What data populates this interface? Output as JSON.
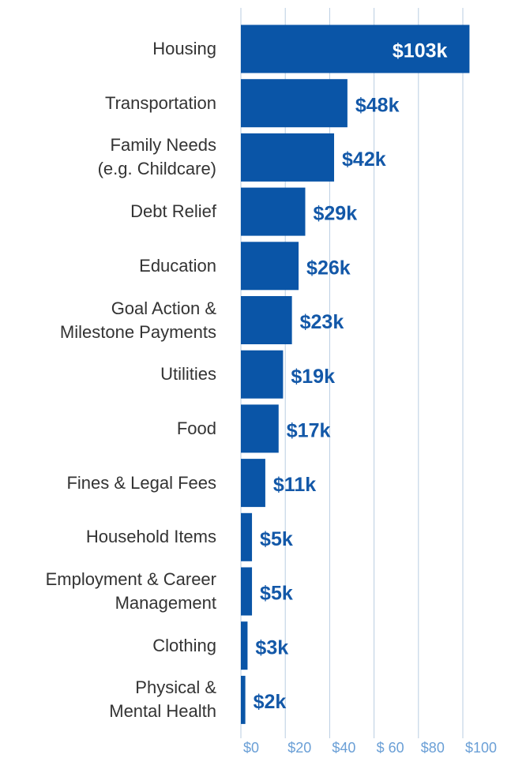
{
  "chart_data": {
    "type": "hbar",
    "categories": [
      "Housing",
      "Transportation",
      "Family Needs\n(e.g. Childcare)",
      "Debt Relief",
      "Education",
      "Goal Action &\nMilestone Payments",
      "Utilities",
      "Food",
      "Fines & Legal Fees",
      "Household Items",
      "Employment & Career\nManagement",
      "Clothing",
      "Physical &\nMental Health"
    ],
    "values": [
      103,
      48,
      42,
      29,
      26,
      23,
      19,
      17,
      11,
      5,
      5,
      3,
      2
    ],
    "value_labels": [
      "$103k",
      "$48k",
      "$42k",
      "$29k",
      "$26k",
      "$23k",
      "$19k",
      "$17k",
      "$11k",
      "$5k",
      "$5k",
      "$3k",
      "$2k"
    ],
    "color": "#0a55a7",
    "xlim": [
      0,
      120
    ],
    "xticks": [
      {
        "value": 0,
        "label": "$0"
      },
      {
        "value": 20,
        "label": "$20"
      },
      {
        "value": 40,
        "label": "$40"
      },
      {
        "value": 60,
        "label": "$ 60"
      },
      {
        "value": 80,
        "label": "$80"
      },
      {
        "value": 100,
        "label": "$100"
      }
    ],
    "grid": true
  }
}
